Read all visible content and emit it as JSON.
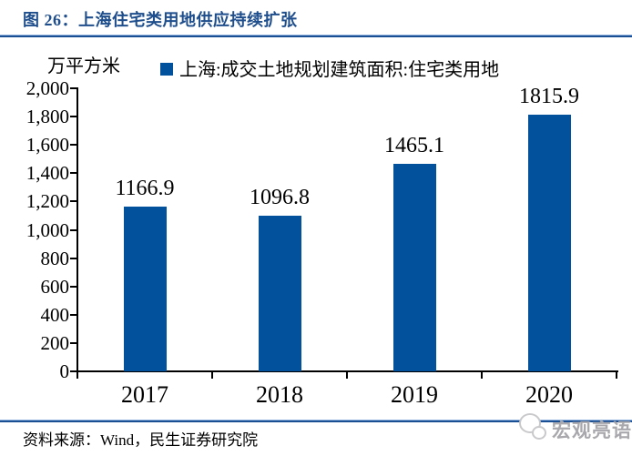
{
  "figure": {
    "title": "图 26：上海住宅类用地供应持续扩张",
    "source": "资料来源：Wind，民生证券研究院",
    "watermark": "宏观亮语"
  },
  "chart_data": {
    "type": "bar",
    "title": "上海住宅类用地供应持续扩张",
    "unit_label": "万平方米",
    "legend": "上海:成交土地规划建筑面积:住宅类用地",
    "categories": [
      "2017",
      "2018",
      "2019",
      "2020"
    ],
    "values": [
      1166.9,
      1096.8,
      1465.1,
      1815.9
    ],
    "data_labels": [
      "1166.9",
      "1096.8",
      "1465.1",
      "1815.9"
    ],
    "ylim": [
      0,
      2000
    ],
    "ytick_step": 200,
    "ytick_labels": [
      "0",
      "200",
      "400",
      "600",
      "800",
      "1,000",
      "1,200",
      "1,400",
      "1,600",
      "1,800",
      "2,000"
    ],
    "grid": false,
    "legend_position": "top",
    "bar_color": "#02519C"
  },
  "colors": {
    "title_blue": "#1F4E8C",
    "bar_blue": "#02519C",
    "rule_dark": "#1B4F93",
    "rule_light": "#8FB2DE",
    "axis_black": "#000000",
    "watermark_gray": "#A9A9AD"
  }
}
